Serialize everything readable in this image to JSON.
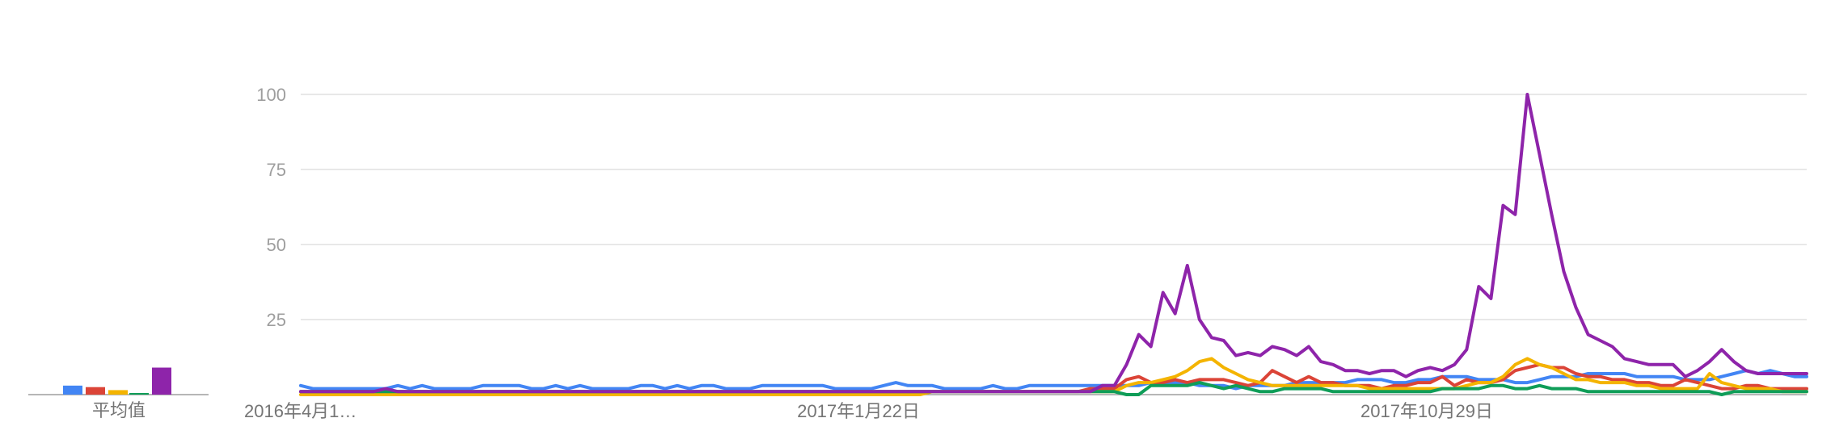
{
  "chart_data": {
    "type": "line",
    "ylim": [
      0,
      100
    ],
    "y_ticks": [
      "25",
      "50",
      "75",
      "100"
    ],
    "x_ticks": [
      "2016年4月1…",
      "2017年1月22日",
      "2017年10月29日"
    ],
    "average_label": "平均值",
    "grid": true,
    "colors": [
      "#4285f4",
      "#db4437",
      "#f4b400",
      "#0f9d58",
      "#8e24aa"
    ],
    "averages": [
      3,
      2.5,
      1.5,
      0.5,
      9
    ],
    "series": [
      {
        "color": "#4285f4",
        "values": [
          3,
          2,
          2,
          2,
          2,
          2,
          2,
          2,
          3,
          2,
          3,
          2,
          2,
          2,
          2,
          3,
          3,
          3,
          3,
          2,
          2,
          3,
          2,
          3,
          2,
          2,
          2,
          2,
          3,
          3,
          2,
          3,
          2,
          3,
          3,
          2,
          2,
          2,
          3,
          3,
          3,
          3,
          3,
          3,
          2,
          2,
          2,
          2,
          3,
          4,
          3,
          3,
          3,
          2,
          2,
          2,
          2,
          3,
          2,
          2,
          3,
          3,
          3,
          3,
          3,
          3,
          3,
          3,
          3,
          3,
          4,
          4,
          4,
          4,
          3,
          3,
          3,
          2,
          3,
          3,
          3,
          3,
          4,
          4,
          4,
          4,
          4,
          5,
          5,
          5,
          4,
          4,
          5,
          5,
          6,
          6,
          6,
          5,
          5,
          5,
          4,
          4,
          5,
          6,
          6,
          6,
          7,
          7,
          7,
          7,
          6,
          6,
          6,
          6,
          5,
          5,
          5,
          6,
          7,
          8,
          7,
          8,
          7,
          6,
          6
        ]
      },
      {
        "color": "#db4437",
        "values": [
          1,
          1,
          1,
          1,
          1,
          1,
          1,
          1,
          1,
          1,
          1,
          1,
          1,
          1,
          1,
          1,
          1,
          1,
          1,
          1,
          1,
          1,
          1,
          1,
          1,
          1,
          1,
          1,
          1,
          1,
          1,
          1,
          1,
          1,
          1,
          1,
          1,
          1,
          1,
          1,
          1,
          1,
          1,
          1,
          1,
          1,
          1,
          1,
          1,
          1,
          1,
          1,
          1,
          1,
          1,
          1,
          1,
          1,
          1,
          1,
          1,
          1,
          1,
          1,
          1,
          2,
          2,
          2,
          5,
          6,
          4,
          4,
          5,
          4,
          5,
          5,
          5,
          4,
          3,
          4,
          8,
          6,
          4,
          6,
          4,
          4,
          3,
          3,
          3,
          2,
          3,
          3,
          4,
          4,
          6,
          3,
          5,
          4,
          4,
          5,
          8,
          9,
          10,
          9,
          9,
          7,
          6,
          6,
          5,
          5,
          4,
          4,
          3,
          3,
          5,
          4,
          3,
          2,
          2,
          3,
          3,
          2,
          2,
          2,
          2
        ]
      },
      {
        "color": "#f4b400",
        "values": [
          0,
          0,
          0,
          0,
          0,
          0,
          0,
          0,
          0,
          0,
          0,
          0,
          0,
          0,
          0,
          0,
          0,
          0,
          0,
          0,
          0,
          0,
          0,
          0,
          0,
          0,
          0,
          0,
          0,
          0,
          0,
          0,
          0,
          0,
          0,
          0,
          0,
          0,
          0,
          0,
          0,
          0,
          0,
          0,
          0,
          0,
          0,
          0,
          0,
          0,
          0,
          0,
          1,
          1,
          1,
          1,
          1,
          1,
          1,
          1,
          1,
          1,
          1,
          1,
          1,
          1,
          1,
          1,
          3,
          4,
          4,
          5,
          6,
          8,
          11,
          12,
          9,
          7,
          5,
          4,
          3,
          3,
          3,
          3,
          3,
          3,
          3,
          3,
          2,
          2,
          2,
          2,
          2,
          2,
          2,
          2,
          3,
          4,
          4,
          6,
          10,
          12,
          10,
          9,
          7,
          5,
          5,
          4,
          4,
          4,
          3,
          3,
          2,
          2,
          2,
          2,
          7,
          4,
          3,
          2,
          2,
          2,
          1,
          1,
          1
        ]
      },
      {
        "color": "#0f9d58",
        "values": [
          1,
          1,
          1,
          1,
          1,
          1,
          1,
          1,
          1,
          1,
          1,
          1,
          1,
          1,
          1,
          1,
          1,
          1,
          1,
          1,
          1,
          1,
          1,
          1,
          1,
          1,
          1,
          1,
          1,
          1,
          1,
          1,
          1,
          1,
          1,
          1,
          1,
          1,
          1,
          1,
          1,
          1,
          1,
          1,
          1,
          1,
          1,
          1,
          1,
          1,
          1,
          1,
          1,
          1,
          1,
          1,
          1,
          1,
          1,
          1,
          1,
          1,
          1,
          1,
          1,
          1,
          1,
          1,
          0,
          0,
          3,
          3,
          3,
          3,
          4,
          3,
          2,
          3,
          2,
          1,
          1,
          2,
          2,
          2,
          2,
          1,
          1,
          1,
          1,
          1,
          1,
          1,
          1,
          1,
          2,
          2,
          2,
          2,
          3,
          3,
          2,
          2,
          3,
          2,
          2,
          2,
          1,
          1,
          1,
          1,
          1,
          1,
          1,
          1,
          1,
          1,
          1,
          0,
          1,
          1,
          1,
          1,
          1,
          1,
          1
        ]
      },
      {
        "color": "#8e24aa",
        "values": [
          1,
          1,
          1,
          1,
          1,
          1,
          1,
          2,
          1,
          1,
          1,
          1,
          1,
          1,
          1,
          1,
          1,
          1,
          1,
          1,
          1,
          1,
          1,
          1,
          1,
          1,
          1,
          1,
          1,
          1,
          1,
          1,
          1,
          1,
          1,
          1,
          1,
          1,
          1,
          1,
          1,
          1,
          1,
          1,
          1,
          1,
          1,
          1,
          1,
          1,
          1,
          1,
          1,
          1,
          1,
          1,
          1,
          1,
          1,
          1,
          1,
          1,
          1,
          1,
          1,
          1,
          3,
          3,
          10,
          20,
          16,
          34,
          27,
          43,
          25,
          19,
          18,
          13,
          14,
          13,
          16,
          15,
          13,
          16,
          11,
          10,
          8,
          8,
          7,
          8,
          8,
          6,
          8,
          9,
          8,
          10,
          15,
          36,
          32,
          63,
          60,
          100,
          80,
          60,
          41,
          29,
          20,
          18,
          16,
          12,
          11,
          10,
          10,
          10,
          6,
          8,
          11,
          15,
          11,
          8,
          7,
          7,
          7,
          7,
          7
        ]
      }
    ]
  }
}
